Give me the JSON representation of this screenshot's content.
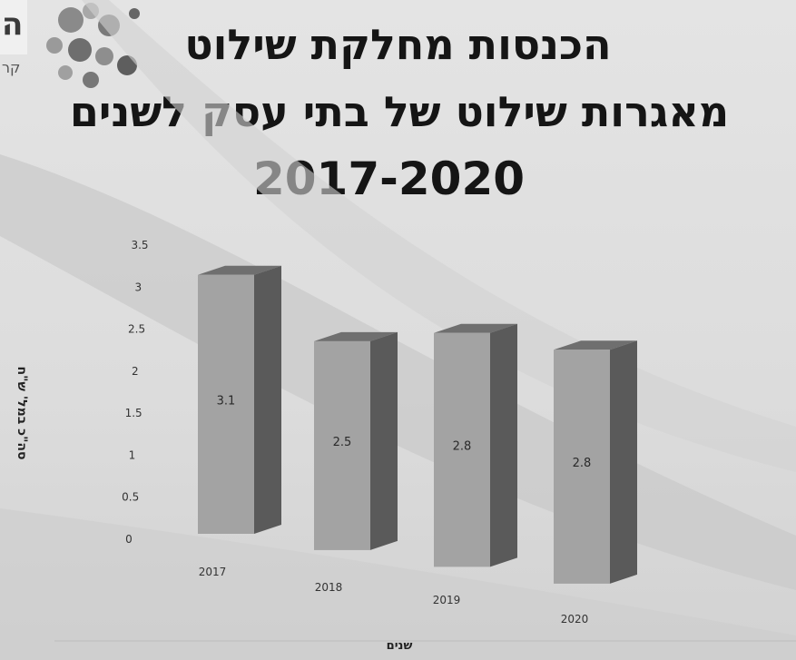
{
  "title": {
    "line1": "הכנסות מחלקת שילוט",
    "line2": "מאגרות שילוט של בתי עסק לשנים",
    "line3": "2017-2020"
  },
  "chart_data": {
    "type": "bar",
    "categories": [
      "2017",
      "2018",
      "2019",
      "2020"
    ],
    "values": [
      3.1,
      2.5,
      2.8,
      2.8
    ],
    "data_labels": [
      "3.1",
      "2.5",
      "2.8",
      "2.8"
    ],
    "yticks": [
      "0",
      "0.5",
      "1",
      "1.5",
      "2",
      "2.5",
      "3",
      "3.5"
    ],
    "ylim": [
      0,
      3.5
    ],
    "xlabel": "שנים",
    "ylabel": "סה\"כ במל' ש\"ח",
    "grid": false,
    "bar_color": "#a3a3a3"
  },
  "logo": {
    "letter": "ה",
    "sub": "קר"
  }
}
